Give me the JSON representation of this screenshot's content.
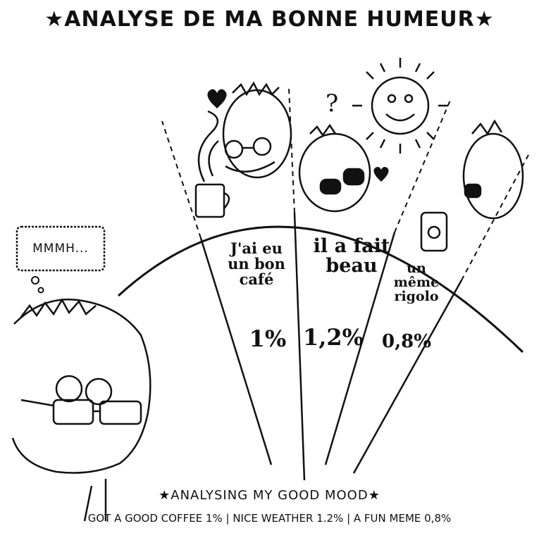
{
  "title": "★ANALYSE DE MA BONNE HUMEUR★",
  "speech_bubble": "MMMH...",
  "chart_data": {
    "type": "pie",
    "slices": [
      {
        "label": "J'ai eu un bon café",
        "label_lines": [
          "J'ai eu",
          "un bon",
          "café"
        ],
        "value": 1,
        "display": "1%"
      },
      {
        "label": "il a fait beau",
        "label_lines": [
          "il a fait",
          "beau"
        ],
        "value": 1.2,
        "display": "1,2%"
      },
      {
        "label": "un même rigolo",
        "label_lines": [
          "un",
          "même",
          "rigolo"
        ],
        "value": 0.8,
        "display": "0,8%"
      }
    ]
  },
  "subtitle": "★ANALYSING MY GOOD MOOD★",
  "caption": "GOT A GOOD COFFEE 1% | NICE WEATHER 1.2% | A FUN MEME 0,8%"
}
